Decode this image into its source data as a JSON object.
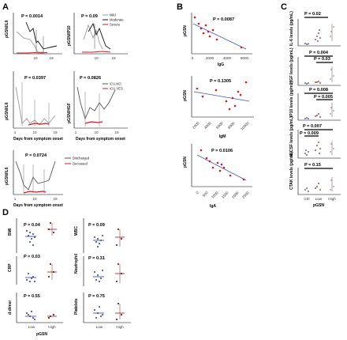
{
  "figure": {
    "panels": {
      "A": {
        "label": "A",
        "sub": [
          {
            "ylabel": "pGSN/IL6",
            "p": "P = 0.0014",
            "xticks": [
              "10",
              "19"
            ]
          },
          {
            "ylabel": "pGSN/IP10",
            "p": "P = 0.09",
            "xticks": [
              "10",
              "19"
            ],
            "legend": [
              "Mild",
              "Moderate",
              "Severe"
            ]
          },
          {
            "ylabel": "pGSN/IL6",
            "p": "P = 0.0397",
            "xticks": [
              "1",
              "10",
              "19"
            ],
            "xlabel": "Days from symptom onset"
          },
          {
            "ylabel": "pGSN/HGF",
            "p": "P = 0.0826",
            "xticks": [
              "1",
              "10",
              "19"
            ],
            "xlabel": "Days from symptom onset",
            "legend": [
              "ICU.NO",
              "ICU.YES"
            ]
          },
          {
            "ylabel": "pGSN/IL6",
            "p": "P = 0.0724",
            "xticks": [
              "1",
              "10",
              "19"
            ],
            "xlabel": "Days from symptom onset",
            "legend": [
              "Discharged",
              "Deceased"
            ]
          }
        ]
      },
      "B": {
        "label": "B",
        "sub": [
          {
            "ylabel": "pGSN",
            "xlabel": "IgG",
            "p": "P = 0.0087",
            "xticks": [
              "0",
              "2000",
              "4000",
              "6000"
            ]
          },
          {
            "ylabel": "pGSN",
            "xlabel": "IgM",
            "p": "P = 0.1305",
            "xticks": [
              "2000",
              "4000",
              "6000",
              "8000",
              "10000"
            ]
          },
          {
            "ylabel": "pGSN",
            "xlabel": "IgA",
            "p": "P = 0.0106",
            "xticks": [
              "0",
              "500",
              "1000",
              "1500",
              "2000",
              "2500"
            ]
          }
        ]
      },
      "C": {
        "label": "C",
        "sub": [
          {
            "ylabel": "IL-6 levels (pg/mL)",
            "p": [
              "P = 0.02"
            ]
          },
          {
            "ylabel": "HGF levels (pg/mL)",
            "p": [
              "P = 0.004",
              "P = 0.03"
            ]
          },
          {
            "ylabel": "IP10 levels (pg/mL)",
            "p": [
              "P = 0.008",
              "P = 0.005"
            ]
          },
          {
            "ylabel": "M-CSF levels (pg/mL)",
            "p": [
              "P = 0.007",
              "P = 0.009"
            ]
          },
          {
            "ylabel": "CTAK levels (pg/mL)",
            "p": [
              "P = 0.15"
            ]
          }
        ],
        "xcats": [
          "Ctrl",
          "Low",
          "High"
        ],
        "xlabel": "pGSN"
      },
      "D": {
        "label": "D",
        "sub": [
          {
            "ylabel": "BMI",
            "p": "P = 0.04"
          },
          {
            "ylabel": "WBC",
            "p": "P = 0.09"
          },
          {
            "ylabel": "CRP",
            "p": "P = 0.03"
          },
          {
            "ylabel": "Neutrophil",
            "p": "P = 0.31"
          },
          {
            "ylabel": "d-dimer",
            "p": "P = 0.55"
          },
          {
            "ylabel": "Platelets",
            "p": "P = 0.75"
          }
        ],
        "xcats": [
          "Low",
          "High"
        ],
        "xlabel": "pGSN"
      }
    },
    "colors": {
      "mild": "#9a9a9a",
      "moderate": "#111111",
      "severe": "#e0161b",
      "red": "#e0161b",
      "blue": "#2b3aa6",
      "regline": "#3b57c8",
      "gray": "#888888",
      "darkred": "#8b1a1a"
    }
  }
}
